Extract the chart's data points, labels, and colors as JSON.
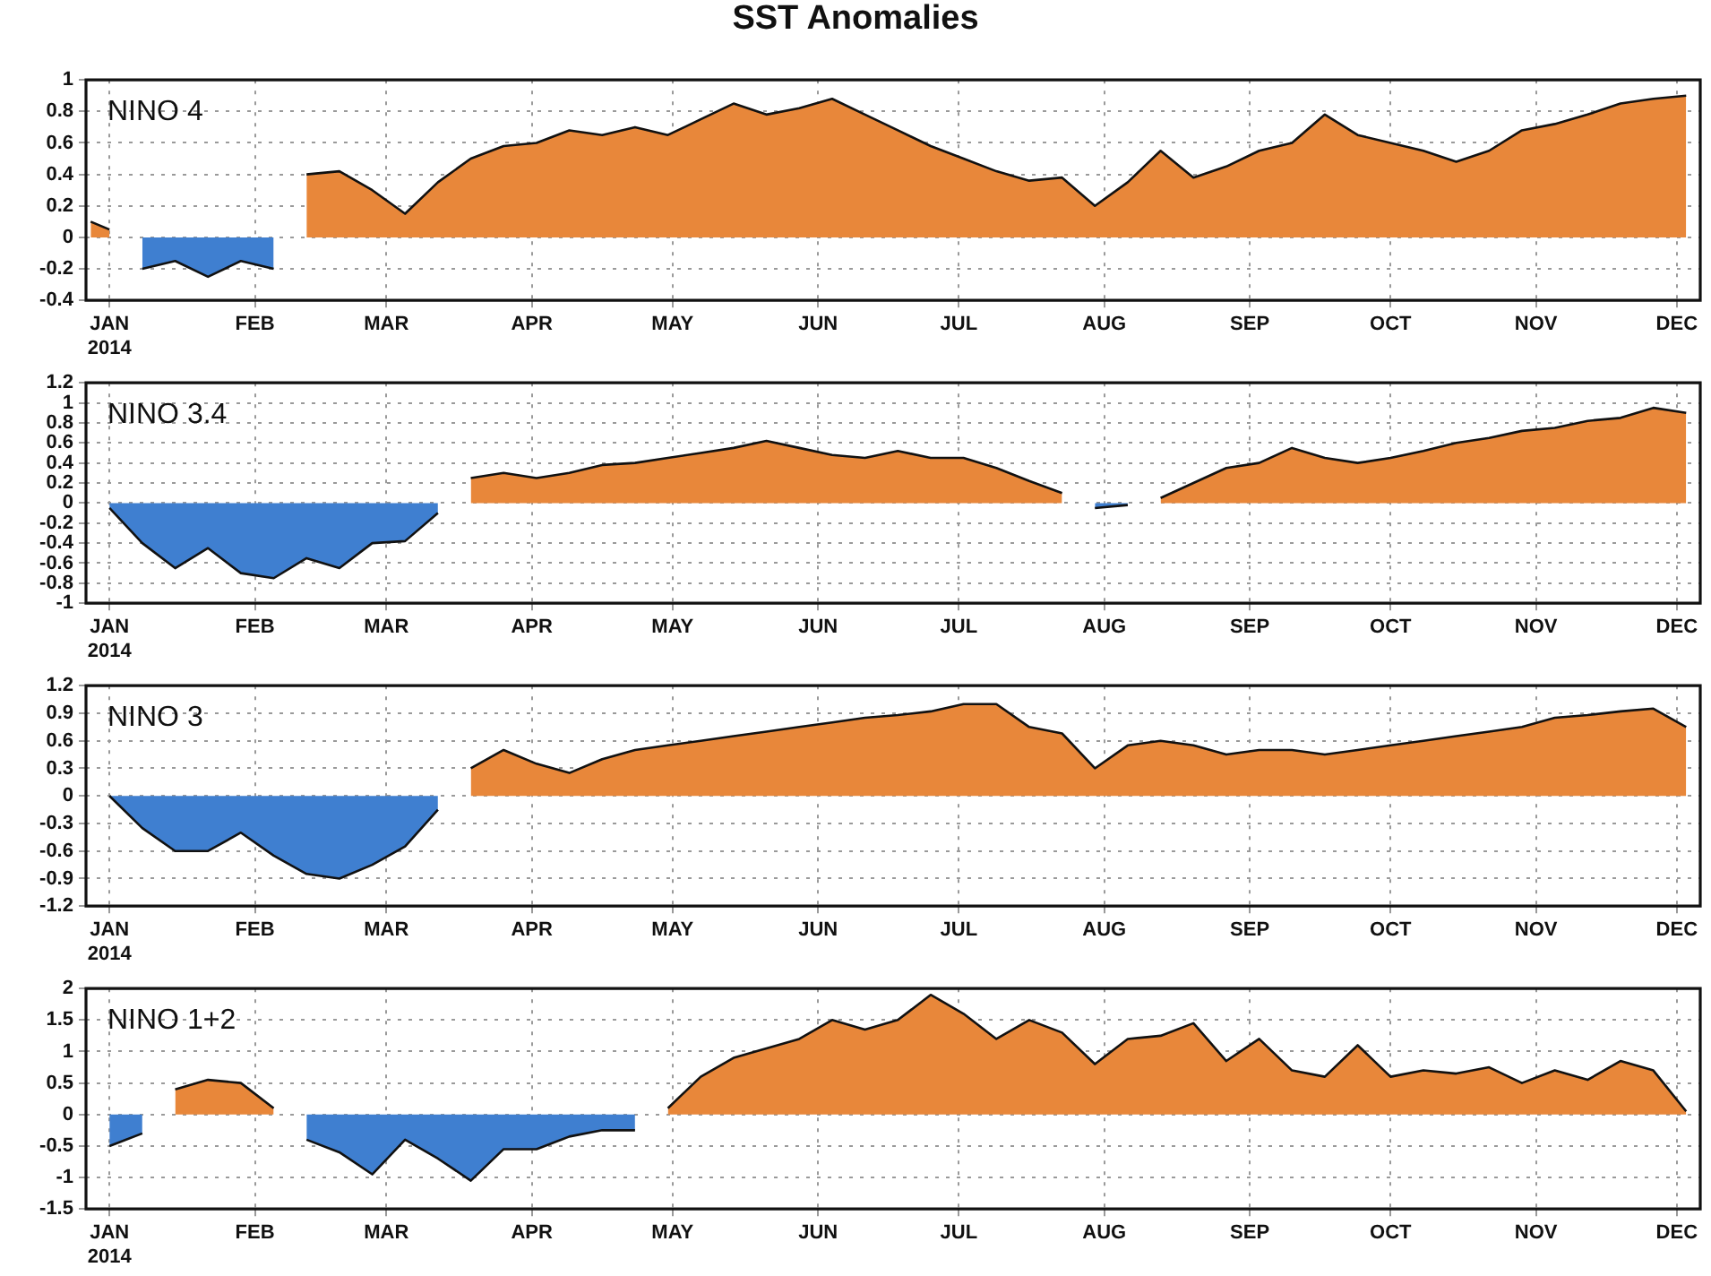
{
  "chart_data": [
    {
      "type": "area",
      "title": "SST Anomalies",
      "annotations": [
        "NINO 4"
      ],
      "x": [
        "2013-12-28",
        "2014-01-01",
        "2014-01-08",
        "2014-01-15",
        "2014-01-22",
        "2014-01-29",
        "2014-02-05",
        "2014-02-12",
        "2014-02-19",
        "2014-02-26",
        "2014-03-05",
        "2014-03-12",
        "2014-03-19",
        "2014-03-26",
        "2014-04-02",
        "2014-04-09",
        "2014-04-16",
        "2014-04-23",
        "2014-04-30",
        "2014-05-07",
        "2014-05-14",
        "2014-05-21",
        "2014-05-28",
        "2014-06-04",
        "2014-06-11",
        "2014-06-18",
        "2014-06-25",
        "2014-07-02",
        "2014-07-09",
        "2014-07-16",
        "2014-07-23",
        "2014-07-30",
        "2014-08-06",
        "2014-08-13",
        "2014-08-20",
        "2014-08-27",
        "2014-09-03",
        "2014-09-10",
        "2014-09-17",
        "2014-09-24",
        "2014-10-01",
        "2014-10-08",
        "2014-10-15",
        "2014-10-22",
        "2014-10-29",
        "2014-11-05",
        "2014-11-12",
        "2014-11-19",
        "2014-11-26",
        "2014-12-03"
      ],
      "series": [
        {
          "color": "#e8873a",
          "values": [
            0.1,
            0.05,
            null,
            null,
            null,
            null,
            null,
            0.4,
            0.42,
            0.3,
            0.15,
            0.35,
            0.5,
            0.58,
            0.6,
            0.68,
            0.65,
            0.7,
            0.65,
            0.75,
            0.85,
            0.78,
            0.82,
            0.88,
            0.78,
            0.68,
            0.58,
            0.5,
            0.42,
            0.36,
            0.38,
            0.2,
            0.35,
            0.55,
            0.38,
            0.45,
            0.55,
            0.6,
            0.78,
            0.65,
            0.6,
            0.55,
            0.48,
            0.55,
            0.68,
            0.72,
            0.78,
            0.85,
            0.88,
            0.9
          ]
        },
        {
          "color": "#3f7fd0",
          "values": [
            null,
            null,
            -0.2,
            -0.15,
            -0.25,
            -0.15,
            -0.2,
            null,
            null,
            null,
            null,
            null,
            null,
            null,
            null,
            null,
            null,
            null,
            null,
            null,
            null,
            null,
            null,
            null,
            null,
            null,
            null,
            null,
            null,
            null,
            null,
            null,
            null,
            null,
            null,
            null,
            null,
            null,
            null,
            null,
            null,
            null,
            null,
            null,
            null,
            null,
            null,
            null,
            null,
            null
          ]
        }
      ],
      "xlim": [
        "2013-12-27",
        "2014-12-06"
      ],
      "xticks": [
        {
          "value": "2014-01-01",
          "label": "JAN 2014"
        },
        {
          "value": "2014-02-01",
          "label": "FEB"
        },
        {
          "value": "2014-03-01",
          "label": "MAR"
        },
        {
          "value": "2014-04-01",
          "label": "APR"
        },
        {
          "value": "2014-05-01",
          "label": "MAY"
        },
        {
          "value": "2014-06-01",
          "label": "JUN"
        },
        {
          "value": "2014-07-01",
          "label": "JUL"
        },
        {
          "value": "2014-08-01",
          "label": "AUG"
        },
        {
          "value": "2014-09-01",
          "label": "SEP"
        },
        {
          "value": "2014-10-01",
          "label": "OCT"
        },
        {
          "value": "2014-11-01",
          "label": "NOV"
        },
        {
          "value": "2014-12-01",
          "label": "DEC"
        }
      ],
      "ylim": [
        -0.4,
        1
      ],
      "yticks": [
        -0.4,
        -0.2,
        0,
        0.2,
        0.4,
        0.6,
        0.8,
        1
      ],
      "grid": true,
      "marker": "none"
    },
    {
      "type": "area",
      "annotations": [
        "NINO 3.4"
      ],
      "x": [
        "2014-01-01",
        "2014-01-08",
        "2014-01-15",
        "2014-01-22",
        "2014-01-29",
        "2014-02-05",
        "2014-02-12",
        "2014-02-19",
        "2014-02-26",
        "2014-03-05",
        "2014-03-12",
        "2014-03-19",
        "2014-03-26",
        "2014-04-02",
        "2014-04-09",
        "2014-04-16",
        "2014-04-23",
        "2014-04-30",
        "2014-05-07",
        "2014-05-14",
        "2014-05-21",
        "2014-05-28",
        "2014-06-04",
        "2014-06-11",
        "2014-06-18",
        "2014-06-25",
        "2014-07-02",
        "2014-07-09",
        "2014-07-16",
        "2014-07-23",
        "2014-07-30",
        "2014-08-06",
        "2014-08-13",
        "2014-08-20",
        "2014-08-27",
        "2014-09-03",
        "2014-09-10",
        "2014-09-17",
        "2014-09-24",
        "2014-10-01",
        "2014-10-08",
        "2014-10-15",
        "2014-10-22",
        "2014-10-29",
        "2014-11-05",
        "2014-11-12",
        "2014-11-19",
        "2014-11-26",
        "2014-12-03"
      ],
      "series": [
        {
          "color": "#e8873a",
          "values": [
            null,
            null,
            null,
            null,
            null,
            null,
            null,
            null,
            null,
            null,
            null,
            0.25,
            0.3,
            0.25,
            0.3,
            0.38,
            0.4,
            0.45,
            0.5,
            0.55,
            0.62,
            0.55,
            0.48,
            0.45,
            0.52,
            0.45,
            0.45,
            0.35,
            0.22,
            0.1,
            null,
            null,
            0.05,
            0.2,
            0.35,
            0.4,
            0.55,
            0.45,
            0.4,
            0.45,
            0.52,
            0.6,
            0.65,
            0.72,
            0.75,
            0.82,
            0.85,
            0.95,
            0.9
          ]
        },
        {
          "color": "#3f7fd0",
          "values": [
            -0.05,
            -0.4,
            -0.65,
            -0.45,
            -0.7,
            -0.75,
            -0.55,
            -0.65,
            -0.4,
            -0.38,
            -0.1,
            null,
            null,
            null,
            null,
            null,
            null,
            null,
            null,
            null,
            null,
            null,
            null,
            null,
            null,
            null,
            null,
            null,
            null,
            null,
            -0.05,
            -0.02,
            null,
            null,
            null,
            null,
            null,
            null,
            null,
            null,
            null,
            null,
            null,
            null,
            null,
            null,
            null,
            null,
            null
          ]
        }
      ],
      "xlim": [
        "2013-12-27",
        "2014-12-06"
      ],
      "xticks": [
        {
          "value": "2014-01-01",
          "label": "JAN 2014"
        },
        {
          "value": "2014-02-01",
          "label": "FEB"
        },
        {
          "value": "2014-03-01",
          "label": "MAR"
        },
        {
          "value": "2014-04-01",
          "label": "APR"
        },
        {
          "value": "2014-05-01",
          "label": "MAY"
        },
        {
          "value": "2014-06-01",
          "label": "JUN"
        },
        {
          "value": "2014-07-01",
          "label": "JUL"
        },
        {
          "value": "2014-08-01",
          "label": "AUG"
        },
        {
          "value": "2014-09-01",
          "label": "SEP"
        },
        {
          "value": "2014-10-01",
          "label": "OCT"
        },
        {
          "value": "2014-11-01",
          "label": "NOV"
        },
        {
          "value": "2014-12-01",
          "label": "DEC"
        }
      ],
      "ylim": [
        -1,
        1.2
      ],
      "yticks": [
        -1,
        -0.8,
        -0.6,
        -0.4,
        -0.2,
        0,
        0.2,
        0.4,
        0.6,
        0.8,
        1,
        1.2
      ],
      "grid": true,
      "marker": "none"
    },
    {
      "type": "area",
      "annotations": [
        "NINO 3"
      ],
      "x": [
        "2014-01-01",
        "2014-01-08",
        "2014-01-15",
        "2014-01-22",
        "2014-01-29",
        "2014-02-05",
        "2014-02-12",
        "2014-02-19",
        "2014-02-26",
        "2014-03-05",
        "2014-03-12",
        "2014-03-19",
        "2014-03-26",
        "2014-04-02",
        "2014-04-09",
        "2014-04-16",
        "2014-04-23",
        "2014-04-30",
        "2014-05-07",
        "2014-05-14",
        "2014-05-21",
        "2014-05-28",
        "2014-06-04",
        "2014-06-11",
        "2014-06-18",
        "2014-06-25",
        "2014-07-02",
        "2014-07-09",
        "2014-07-16",
        "2014-07-23",
        "2014-07-30",
        "2014-08-06",
        "2014-08-13",
        "2014-08-20",
        "2014-08-27",
        "2014-09-03",
        "2014-09-10",
        "2014-09-17",
        "2014-09-24",
        "2014-10-01",
        "2014-10-08",
        "2014-10-15",
        "2014-10-22",
        "2014-10-29",
        "2014-11-05",
        "2014-11-12",
        "2014-11-19",
        "2014-11-26",
        "2014-12-03"
      ],
      "series": [
        {
          "color": "#e8873a",
          "values": [
            null,
            null,
            null,
            null,
            null,
            null,
            null,
            null,
            null,
            null,
            null,
            0.3,
            0.5,
            0.35,
            0.25,
            0.4,
            0.5,
            0.55,
            0.6,
            0.65,
            0.7,
            0.75,
            0.8,
            0.85,
            0.88,
            0.92,
            1,
            1,
            0.75,
            0.68,
            0.3,
            0.55,
            0.6,
            0.55,
            0.45,
            0.5,
            0.5,
            0.45,
            0.5,
            0.55,
            0.6,
            0.65,
            0.7,
            0.75,
            0.85,
            0.88,
            0.92,
            0.95,
            0.75
          ]
        },
        {
          "color": "#3f7fd0",
          "values": [
            0,
            -0.35,
            -0.6,
            -0.6,
            -0.4,
            -0.65,
            -0.85,
            -0.9,
            -0.75,
            -0.55,
            -0.15,
            null,
            null,
            null,
            null,
            null,
            null,
            null,
            null,
            null,
            null,
            null,
            null,
            null,
            null,
            null,
            null,
            null,
            null,
            null,
            null,
            null,
            null,
            null,
            null,
            null,
            null,
            null,
            null,
            null,
            null,
            null,
            null,
            null,
            null,
            null,
            null,
            null,
            null
          ]
        }
      ],
      "xlim": [
        "2013-12-27",
        "2014-12-06"
      ],
      "xticks": [
        {
          "value": "2014-01-01",
          "label": "JAN 2014"
        },
        {
          "value": "2014-02-01",
          "label": "FEB"
        },
        {
          "value": "2014-03-01",
          "label": "MAR"
        },
        {
          "value": "2014-04-01",
          "label": "APR"
        },
        {
          "value": "2014-05-01",
          "label": "MAY"
        },
        {
          "value": "2014-06-01",
          "label": "JUN"
        },
        {
          "value": "2014-07-01",
          "label": "JUL"
        },
        {
          "value": "2014-08-01",
          "label": "AUG"
        },
        {
          "value": "2014-09-01",
          "label": "SEP"
        },
        {
          "value": "2014-10-01",
          "label": "OCT"
        },
        {
          "value": "2014-11-01",
          "label": "NOV"
        },
        {
          "value": "2014-12-01",
          "label": "DEC"
        }
      ],
      "ylim": [
        -1.2,
        1.2
      ],
      "yticks": [
        -1.2,
        -0.9,
        -0.6,
        -0.3,
        0,
        0.3,
        0.6,
        0.9,
        1.2
      ],
      "grid": true,
      "marker": "none"
    },
    {
      "type": "area",
      "annotations": [
        "NINO 1+2"
      ],
      "x": [
        "2014-01-01",
        "2014-01-08",
        "2014-01-15",
        "2014-01-22",
        "2014-01-29",
        "2014-02-05",
        "2014-02-12",
        "2014-02-19",
        "2014-02-26",
        "2014-03-05",
        "2014-03-12",
        "2014-03-19",
        "2014-03-26",
        "2014-04-02",
        "2014-04-09",
        "2014-04-16",
        "2014-04-23",
        "2014-04-30",
        "2014-05-07",
        "2014-05-14",
        "2014-05-21",
        "2014-05-28",
        "2014-06-04",
        "2014-06-11",
        "2014-06-18",
        "2014-06-25",
        "2014-07-02",
        "2014-07-09",
        "2014-07-16",
        "2014-07-23",
        "2014-07-30",
        "2014-08-06",
        "2014-08-13",
        "2014-08-20",
        "2014-08-27",
        "2014-09-03",
        "2014-09-10",
        "2014-09-17",
        "2014-09-24",
        "2014-10-01",
        "2014-10-08",
        "2014-10-15",
        "2014-10-22",
        "2014-10-29",
        "2014-11-05",
        "2014-11-12",
        "2014-11-19",
        "2014-11-26",
        "2014-12-03"
      ],
      "series": [
        {
          "color": "#e8873a",
          "values": [
            null,
            null,
            0.4,
            0.55,
            0.5,
            0.1,
            null,
            null,
            null,
            null,
            null,
            null,
            null,
            null,
            null,
            null,
            null,
            0.1,
            0.6,
            0.9,
            1.05,
            1.2,
            1.5,
            1.35,
            1.5,
            1.9,
            1.6,
            1.2,
            1.5,
            1.3,
            0.8,
            1.2,
            1.25,
            1.45,
            0.85,
            1.2,
            0.7,
            0.6,
            1.1,
            0.6,
            0.7,
            0.65,
            0.75,
            0.5,
            0.7,
            0.55,
            0.85,
            0.7,
            0.05
          ]
        },
        {
          "color": "#3f7fd0",
          "values": [
            -0.5,
            -0.3,
            null,
            null,
            null,
            null,
            -0.4,
            -0.6,
            -0.95,
            -0.4,
            -0.7,
            -1.05,
            -0.55,
            -0.55,
            -0.35,
            -0.25,
            -0.25,
            null,
            null,
            null,
            null,
            null,
            null,
            null,
            null,
            null,
            null,
            null,
            null,
            null,
            null,
            null,
            null,
            null,
            null,
            null,
            null,
            null,
            null,
            null,
            null,
            null,
            null,
            null,
            null,
            null,
            null,
            null,
            null
          ]
        }
      ],
      "xlim": [
        "2013-12-27",
        "2014-12-06"
      ],
      "xticks": [
        {
          "value": "2014-01-01",
          "label": "JAN 2014"
        },
        {
          "value": "2014-02-01",
          "label": "FEB"
        },
        {
          "value": "2014-03-01",
          "label": "MAR"
        },
        {
          "value": "2014-04-01",
          "label": "APR"
        },
        {
          "value": "2014-05-01",
          "label": "MAY"
        },
        {
          "value": "2014-06-01",
          "label": "JUN"
        },
        {
          "value": "2014-07-01",
          "label": "JUL"
        },
        {
          "value": "2014-08-01",
          "label": "AUG"
        },
        {
          "value": "2014-09-01",
          "label": "SEP"
        },
        {
          "value": "2014-10-01",
          "label": "OCT"
        },
        {
          "value": "2014-11-01",
          "label": "NOV"
        },
        {
          "value": "2014-12-01",
          "label": "DEC"
        }
      ],
      "ylim": [
        -1.5,
        2
      ],
      "yticks": [
        -1.5,
        -1,
        -0.5,
        0,
        0.5,
        1,
        1.5,
        2
      ],
      "grid": true,
      "marker": "none"
    }
  ]
}
